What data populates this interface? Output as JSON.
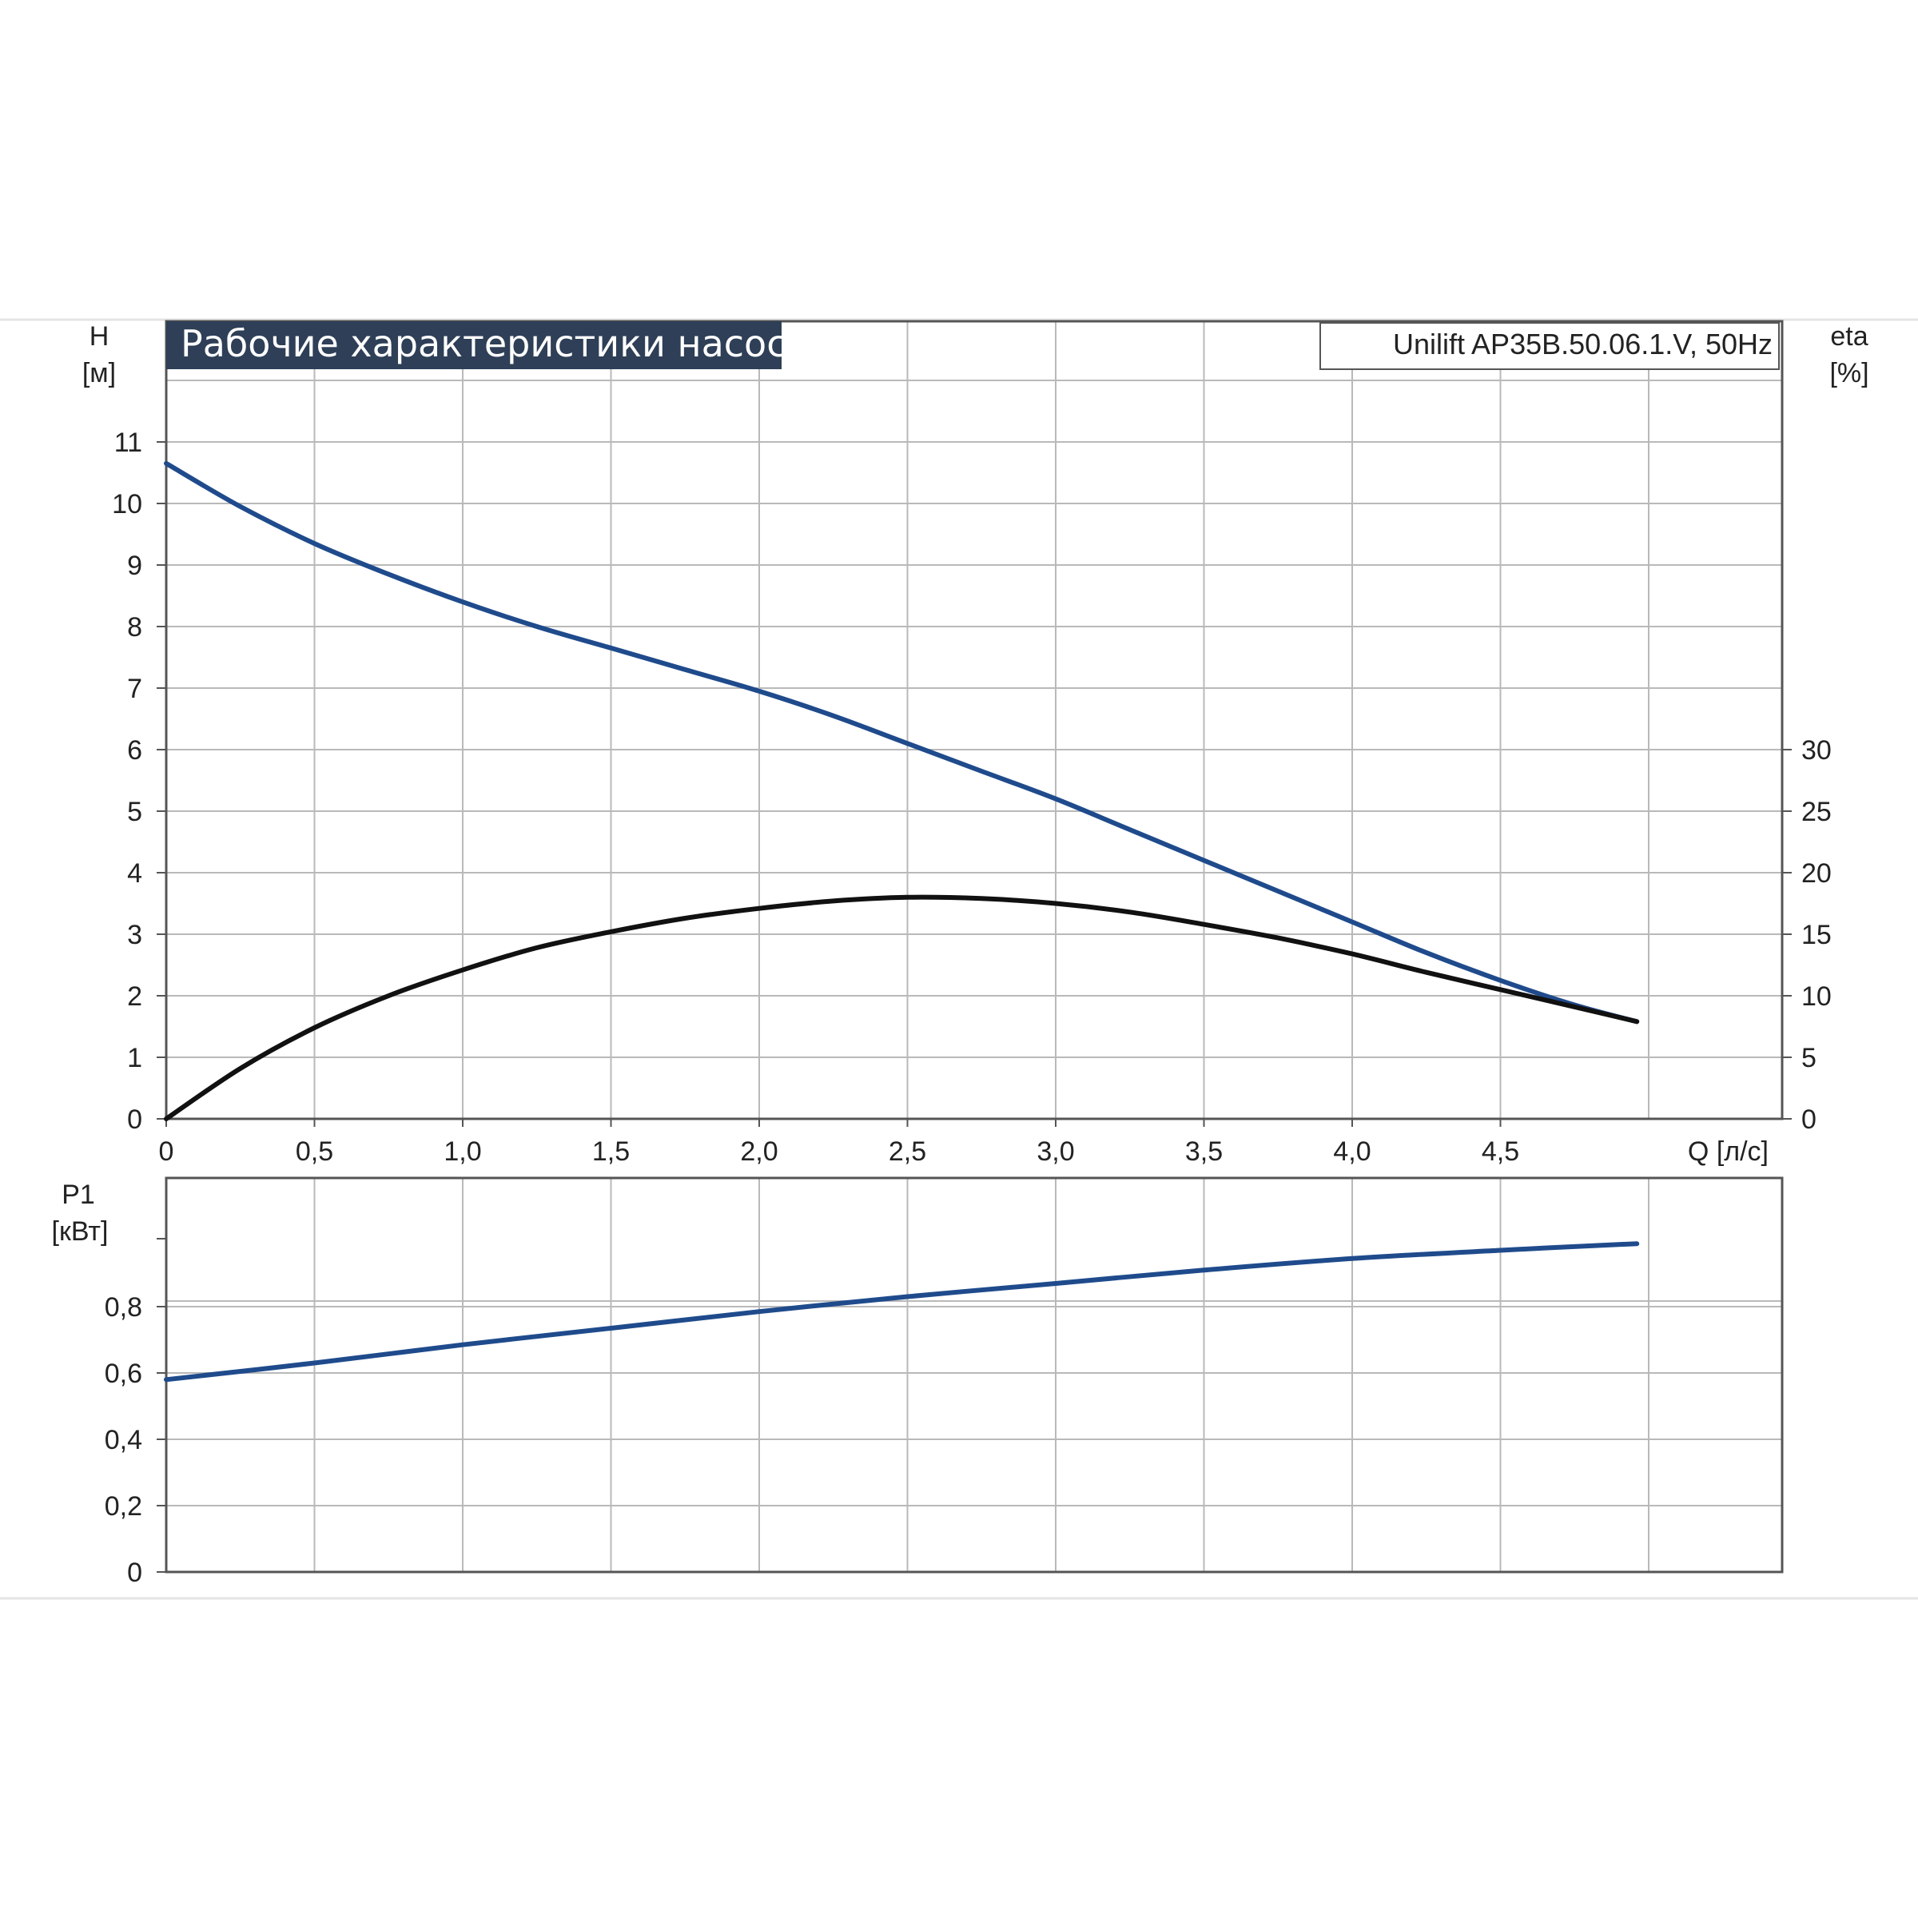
{
  "header": {
    "title": "Рабочие характеристики насоса",
    "model": "Unilift AP35B.50.06.1.V, 50Hz"
  },
  "colors": {
    "title_bg": "#2e3f57",
    "head_curve": "#1f4b8c",
    "eta_curve": "#111111",
    "power_curve": "#1f4b8c",
    "grid": "#b9b9b9",
    "frame": "#555555"
  },
  "chart_data": [
    {
      "type": "line",
      "title": "Рабочие характеристики насоса",
      "subtitle": "Unilift AP35B.50.06.1.V, 50Hz",
      "xlabel": "Q [л/с]",
      "ylabel_left_name": "H",
      "ylabel_left_unit": "[м]",
      "ylabel_right_name": "eta",
      "ylabel_right_unit": "[%]",
      "xlim": [
        0,
        5.45
      ],
      "ylim_left": [
        0,
        12
      ],
      "ylim_right": [
        0,
        60
      ],
      "x_ticks": [
        "0",
        "0,5",
        "1,0",
        "1,5",
        "2,0",
        "2,5",
        "3,0",
        "3,5",
        "4,0",
        "4,5"
      ],
      "y_ticks_left": [
        "0",
        "1",
        "2",
        "3",
        "4",
        "5",
        "6",
        "7",
        "8",
        "9",
        "10",
        "11"
      ],
      "y_ticks_right": [
        "0",
        "5",
        "10",
        "15",
        "20",
        "25",
        "30"
      ],
      "grid": true,
      "series": [
        {
          "axis": "left",
          "x": [
            0,
            0.25,
            0.5,
            0.75,
            1.0,
            1.25,
            1.5,
            1.75,
            2.0,
            2.25,
            2.5,
            2.75,
            3.0,
            3.25,
            3.5,
            3.75,
            4.0,
            4.25,
            4.5,
            4.75,
            4.96
          ],
          "values": [
            10.65,
            9.95,
            9.35,
            8.85,
            8.4,
            8.0,
            7.65,
            7.3,
            6.95,
            6.55,
            6.1,
            5.65,
            5.2,
            4.7,
            4.2,
            3.7,
            3.2,
            2.7,
            2.25,
            1.85,
            1.58
          ]
        },
        {
          "axis": "right",
          "x": [
            0,
            0.25,
            0.5,
            0.75,
            1.0,
            1.25,
            1.5,
            1.75,
            2.0,
            2.25,
            2.5,
            2.75,
            3.0,
            3.25,
            3.5,
            3.75,
            4.0,
            4.25,
            4.5,
            4.75,
            4.96
          ],
          "values": [
            0,
            4.1,
            7.4,
            10.0,
            12.1,
            13.9,
            15.2,
            16.3,
            17.1,
            17.7,
            18.0,
            17.9,
            17.5,
            16.8,
            15.8,
            14.7,
            13.4,
            11.9,
            10.5,
            9.1,
            7.9
          ]
        }
      ]
    },
    {
      "type": "line",
      "xlabel": "",
      "ylabel_name": "P1",
      "ylabel_unit": "[кВт]",
      "xlim": [
        0,
        5.45
      ],
      "ylim": [
        0,
        1.0
      ],
      "y_ticks": [
        "0",
        "0,2",
        "0,4",
        "0,6",
        "0,8"
      ],
      "grid": true,
      "series": [
        {
          "x": [
            0,
            0.5,
            1.0,
            1.5,
            2.0,
            2.5,
            3.0,
            3.5,
            4.0,
            4.5,
            4.96
          ],
          "values": [
            0.58,
            0.63,
            0.685,
            0.735,
            0.785,
            0.83,
            0.87,
            0.91,
            0.945,
            0.97,
            0.99
          ]
        }
      ]
    }
  ]
}
